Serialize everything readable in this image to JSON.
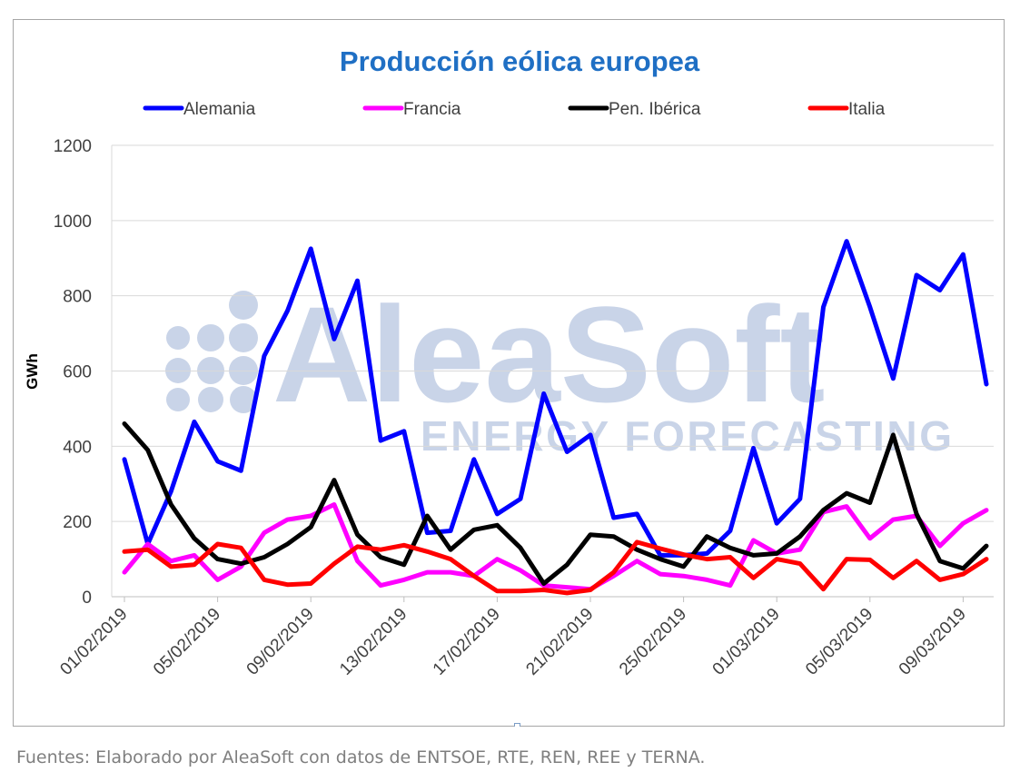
{
  "chart_data": {
    "type": "line",
    "title": "Producción eólica europea",
    "ylabel": "GWh",
    "xlabel": "",
    "ylim": [
      0,
      1200
    ],
    "yticks": [
      0,
      200,
      400,
      600,
      800,
      1000,
      1200
    ],
    "grid": true,
    "legend_position": "top",
    "x": [
      "01/02/2019",
      "02/02/2019",
      "03/02/2019",
      "04/02/2019",
      "05/02/2019",
      "06/02/2019",
      "07/02/2019",
      "08/02/2019",
      "09/02/2019",
      "10/02/2019",
      "11/02/2019",
      "12/02/2019",
      "13/02/2019",
      "14/02/2019",
      "15/02/2019",
      "16/02/2019",
      "17/02/2019",
      "18/02/2019",
      "19/02/2019",
      "20/02/2019",
      "21/02/2019",
      "22/02/2019",
      "23/02/2019",
      "24/02/2019",
      "25/02/2019",
      "26/02/2019",
      "27/02/2019",
      "28/02/2019",
      "01/03/2019",
      "02/03/2019",
      "03/03/2019",
      "04/03/2019",
      "05/03/2019",
      "06/03/2019",
      "07/03/2019",
      "08/03/2019",
      "09/03/2019",
      "10/03/2019",
      "11/03/2019"
    ],
    "x_tick_labels": [
      "01/02/2019",
      "05/02/2019",
      "09/02/2019",
      "13/02/2019",
      "17/02/2019",
      "21/02/2019",
      "25/02/2019",
      "01/03/2019",
      "05/03/2019",
      "09/03/2019"
    ],
    "series": [
      {
        "name": "Alemania",
        "color": "#0000ff",
        "values": [
          365,
          140,
          280,
          465,
          360,
          335,
          640,
          760,
          925,
          685,
          840,
          415,
          440,
          170,
          175,
          365,
          220,
          260,
          540,
          385,
          430,
          210,
          220,
          110,
          110,
          115,
          175,
          395,
          195,
          260,
          770,
          945,
          770,
          580,
          855,
          815,
          910,
          565,
          null
        ]
      },
      {
        "name": "Francia",
        "color": "#ff00ff",
        "values": [
          65,
          140,
          95,
          110,
          45,
          80,
          170,
          205,
          215,
          245,
          95,
          30,
          45,
          65,
          65,
          55,
          100,
          70,
          30,
          25,
          20,
          55,
          95,
          60,
          55,
          45,
          30,
          150,
          115,
          125,
          225,
          240,
          155,
          205,
          215,
          135,
          195,
          230,
          null
        ]
      },
      {
        "name": "Pen. Ibérica",
        "color": "#000000",
        "values": [
          460,
          390,
          245,
          155,
          100,
          88,
          105,
          140,
          185,
          310,
          165,
          105,
          85,
          215,
          125,
          178,
          190,
          130,
          35,
          85,
          165,
          160,
          125,
          100,
          80,
          160,
          130,
          110,
          115,
          160,
          230,
          275,
          250,
          430,
          220,
          95,
          75,
          135,
          null
        ]
      },
      {
        "name": "Italia",
        "color": "#ff0000",
        "values": [
          120,
          125,
          80,
          85,
          140,
          130,
          45,
          32,
          35,
          88,
          133,
          125,
          137,
          120,
          100,
          55,
          15,
          15,
          18,
          10,
          18,
          65,
          145,
          128,
          112,
          100,
          105,
          50,
          100,
          88,
          20,
          100,
          98,
          50,
          95,
          45,
          60,
          100,
          null
        ]
      }
    ]
  },
  "watermark": {
    "brand": "AleaSoft",
    "tagline": "ENERGY FORECASTING",
    "color": "#c9d4e8"
  },
  "source_note": "Fuentes: Elaborado por AleaSoft con datos de ENTSOE, RTE, REN, REE y TERNA."
}
